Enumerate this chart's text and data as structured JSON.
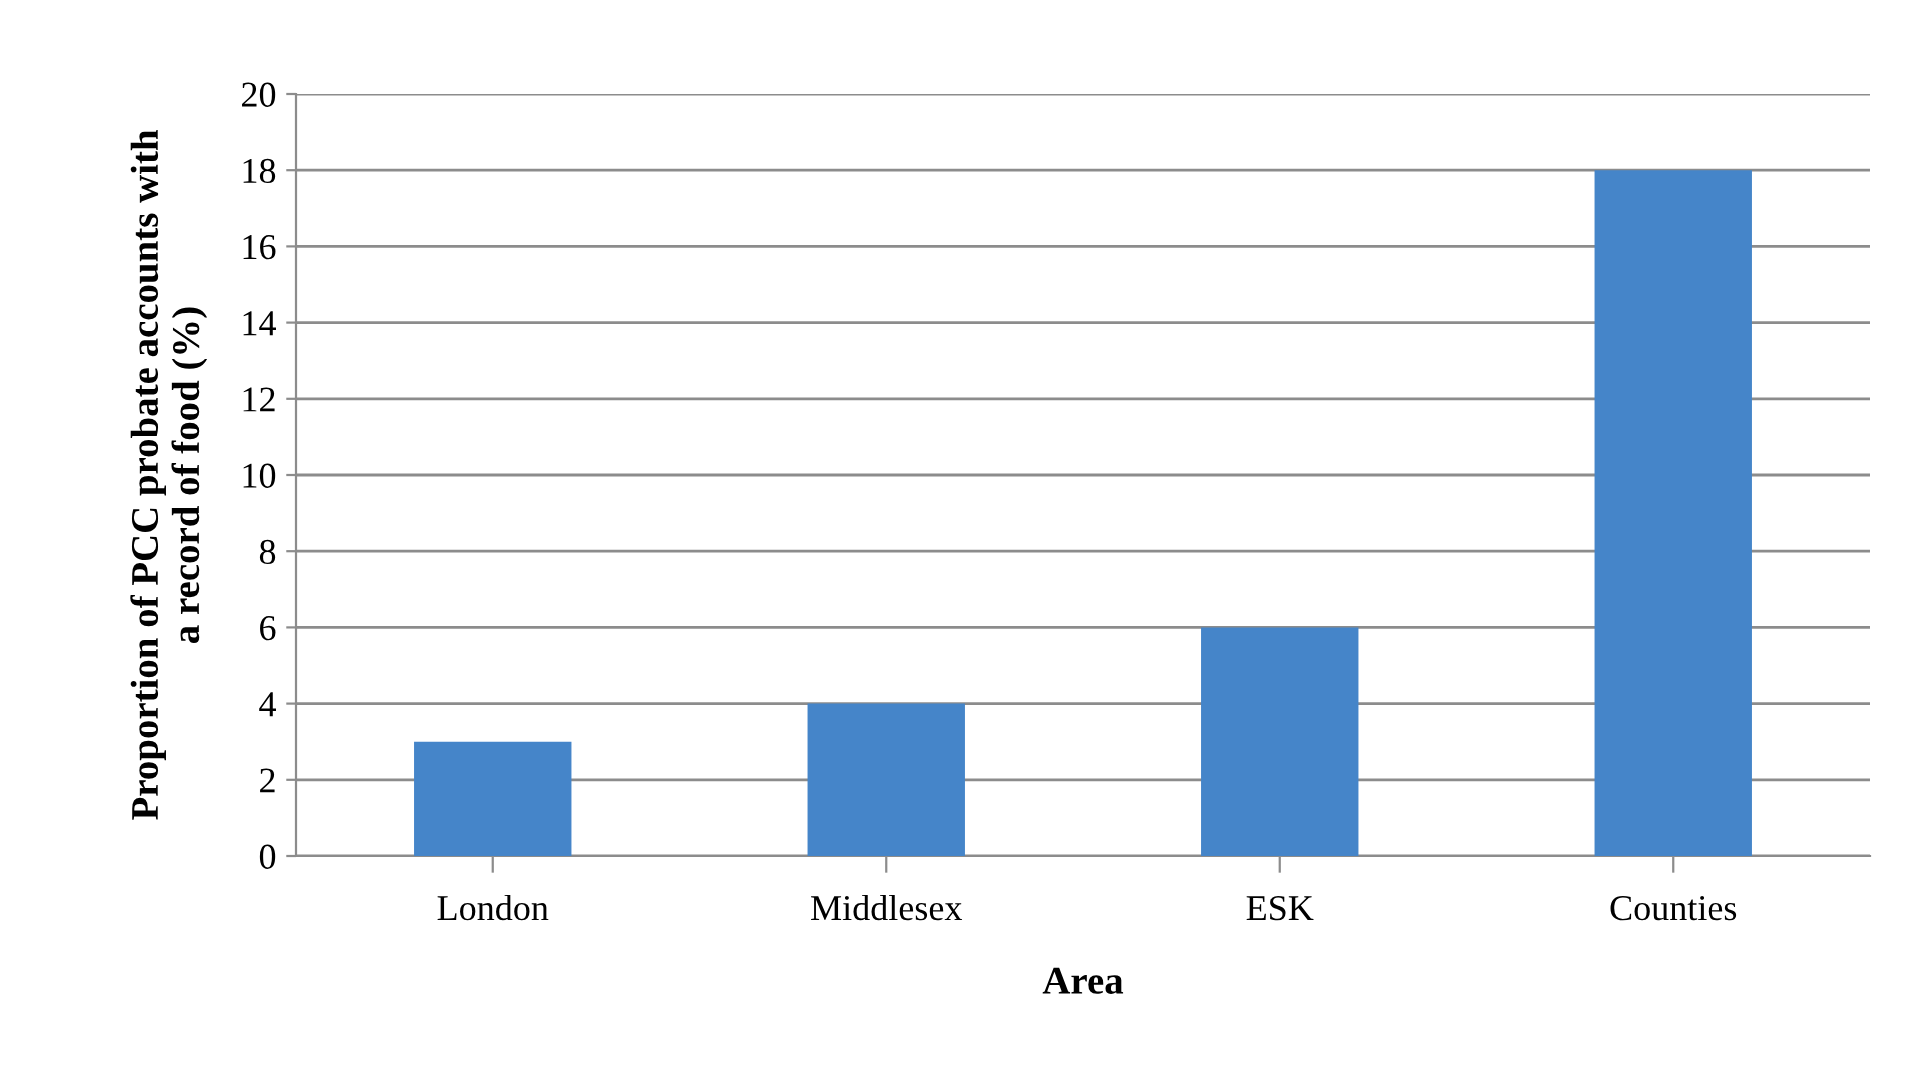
{
  "chart_data": {
    "type": "bar",
    "xlabel": "Area",
    "ylabel": "Proportion of PCC probate accounts with\na record of food (%)",
    "categories": [
      "London",
      "Middlesex",
      "ESK",
      "Counties"
    ],
    "values": [
      3,
      4,
      6,
      18
    ],
    "color": "#4585c9",
    "ylim": [
      0,
      20
    ],
    "yticks": [
      0,
      2,
      4,
      6,
      8,
      10,
      12,
      14,
      16,
      18,
      20
    ],
    "grid": "y",
    "legend": false
  }
}
